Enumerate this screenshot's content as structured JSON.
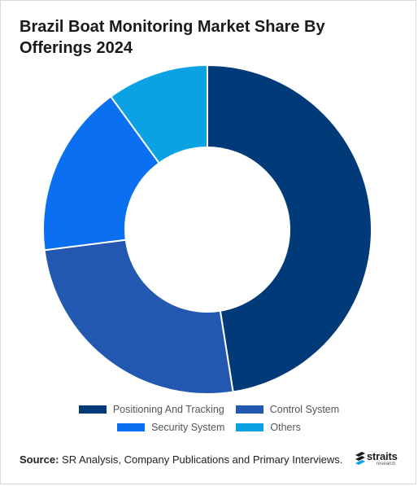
{
  "chart_data": {
    "type": "pie",
    "title": "Brazil Boat Monitoring Market Share By Offerings 2024",
    "donut": true,
    "categories": [
      "Positioning And Tracking",
      "Control System",
      "Security System",
      "Others"
    ],
    "values": [
      47.5,
      25.5,
      17,
      10
    ],
    "colors": [
      "#003a78",
      "#2258b0",
      "#0a6ff0",
      "#0aa2e2"
    ],
    "legend_position": "bottom"
  },
  "footer": {
    "source_label": "Source:",
    "source_text": " SR Analysis, Company Publications and Primary Interviews."
  },
  "logo": {
    "name": "straits",
    "sub": "research",
    "icon": "straits-logo-icon"
  }
}
